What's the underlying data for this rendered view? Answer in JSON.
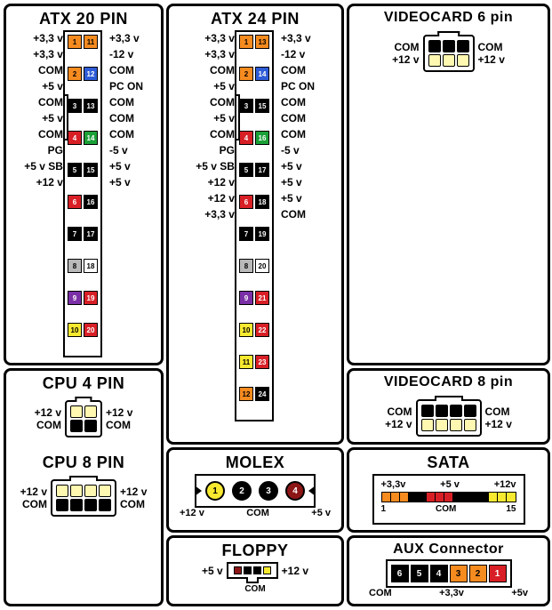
{
  "colors": {
    "orange": "#f68b1f",
    "blue": "#2e5cd6",
    "black": "#000000",
    "red": "#d81f26",
    "green": "#1aa037",
    "white": "#ffffff",
    "gray": "#b9b9b9",
    "purple": "#7b2fa6",
    "yellow": "#f7e92f",
    "darkred": "#8c1616",
    "ltyellow": "#fff8b0"
  },
  "atx20": {
    "title": "ATX 20 PIN",
    "left": [
      "+3,3 v",
      "+3,3 v",
      "COM",
      "+5 v",
      "COM",
      "+5 v",
      "COM",
      "PG",
      "+5 v SB",
      "+12 v"
    ],
    "right": [
      "+3,3 v",
      "-12 v",
      "COM",
      "PC ON",
      "COM",
      "COM",
      "COM",
      "-5 v",
      "+5 v",
      "+5 v"
    ],
    "pinsL": [
      {
        "n": "1",
        "c": "orange"
      },
      {
        "n": "2",
        "c": "orange"
      },
      {
        "n": "3",
        "c": "black"
      },
      {
        "n": "4",
        "c": "red"
      },
      {
        "n": "5",
        "c": "black"
      },
      {
        "n": "6",
        "c": "red"
      },
      {
        "n": "7",
        "c": "black"
      },
      {
        "n": "8",
        "c": "gray"
      },
      {
        "n": "9",
        "c": "purple"
      },
      {
        "n": "10",
        "c": "yellow"
      }
    ],
    "pinsR": [
      {
        "n": "11",
        "c": "orange"
      },
      {
        "n": "12",
        "c": "blue"
      },
      {
        "n": "13",
        "c": "black"
      },
      {
        "n": "14",
        "c": "green"
      },
      {
        "n": "15",
        "c": "black"
      },
      {
        "n": "16",
        "c": "black"
      },
      {
        "n": "17",
        "c": "black"
      },
      {
        "n": "18",
        "c": "white"
      },
      {
        "n": "19",
        "c": "red"
      },
      {
        "n": "20",
        "c": "red"
      }
    ]
  },
  "atx24": {
    "title": "ATX 24 PIN",
    "left": [
      "+3,3 v",
      "+3,3 v",
      "COM",
      "+5 v",
      "COM",
      "+5 v",
      "COM",
      "PG",
      "+5 v SB",
      "+12 v",
      "+12 v",
      "+3,3 v"
    ],
    "right": [
      "+3,3 v",
      "-12 v",
      "COM",
      "PC ON",
      "COM",
      "COM",
      "COM",
      "-5 v",
      "+5 v",
      "+5 v",
      "+5 v",
      "COM"
    ],
    "pinsL": [
      {
        "n": "1",
        "c": "orange"
      },
      {
        "n": "2",
        "c": "orange"
      },
      {
        "n": "3",
        "c": "black"
      },
      {
        "n": "4",
        "c": "red"
      },
      {
        "n": "5",
        "c": "black"
      },
      {
        "n": "6",
        "c": "red"
      },
      {
        "n": "7",
        "c": "black"
      },
      {
        "n": "8",
        "c": "gray"
      },
      {
        "n": "9",
        "c": "purple"
      },
      {
        "n": "10",
        "c": "yellow"
      },
      {
        "n": "11",
        "c": "yellow"
      },
      {
        "n": "12",
        "c": "orange"
      }
    ],
    "pinsR": [
      {
        "n": "13",
        "c": "orange"
      },
      {
        "n": "14",
        "c": "blue"
      },
      {
        "n": "15",
        "c": "black"
      },
      {
        "n": "16",
        "c": "green"
      },
      {
        "n": "17",
        "c": "black"
      },
      {
        "n": "18",
        "c": "black"
      },
      {
        "n": "19",
        "c": "black"
      },
      {
        "n": "20",
        "c": "white"
      },
      {
        "n": "21",
        "c": "red"
      },
      {
        "n": "22",
        "c": "red"
      },
      {
        "n": "23",
        "c": "red"
      },
      {
        "n": "24",
        "c": "black"
      }
    ]
  },
  "cpu4": {
    "title": "CPU 4 PIN",
    "topL": "+12 v",
    "topR": "+12 v",
    "botL": "COM",
    "botR": "COM",
    "top": [
      {
        "c": "ltyellow"
      },
      {
        "c": "ltyellow"
      }
    ],
    "bot": [
      {
        "c": "black"
      },
      {
        "c": "black"
      }
    ]
  },
  "cpu8": {
    "title": "CPU 8 PIN",
    "topL": "+12 v",
    "topR": "+12 v",
    "botL": "COM",
    "botR": "COM",
    "top": [
      {
        "c": "ltyellow"
      },
      {
        "c": "ltyellow"
      },
      {
        "c": "ltyellow"
      },
      {
        "c": "ltyellow"
      }
    ],
    "bot": [
      {
        "c": "black"
      },
      {
        "c": "black"
      },
      {
        "c": "black"
      },
      {
        "c": "black"
      }
    ]
  },
  "vga6": {
    "title": "VIDEOCARD 6 pin",
    "topL": "COM",
    "topR": "COM",
    "botL": "+12 v",
    "botR": "+12 v",
    "top": [
      {
        "c": "black"
      },
      {
        "c": "black"
      },
      {
        "c": "black"
      }
    ],
    "bot": [
      {
        "c": "ltyellow"
      },
      {
        "c": "ltyellow"
      },
      {
        "c": "ltyellow"
      }
    ]
  },
  "vga8": {
    "title": "VIDEOCARD 8 pin",
    "topL": "COM",
    "topR": "COM",
    "botL": "+12 v",
    "botR": "+12 v",
    "top": [
      {
        "c": "black"
      },
      {
        "c": "black"
      },
      {
        "c": "black"
      },
      {
        "c": "black"
      }
    ],
    "bot": [
      {
        "c": "ltyellow"
      },
      {
        "c": "ltyellow"
      },
      {
        "c": "ltyellow"
      },
      {
        "c": "ltyellow"
      }
    ]
  },
  "molex": {
    "title": "MOLEX",
    "pins": [
      {
        "n": "1",
        "c": "yellow"
      },
      {
        "n": "2",
        "c": "black"
      },
      {
        "n": "3",
        "c": "black"
      },
      {
        "n": "4",
        "c": "darkred"
      }
    ],
    "lblL": "+12 v",
    "lblR": "+5 v",
    "lblMid": "COM"
  },
  "floppy": {
    "title": "FLOPPY",
    "pins": [
      {
        "c": "darkred"
      },
      {
        "c": "black"
      },
      {
        "c": "black"
      },
      {
        "c": "yellow"
      }
    ],
    "lblL": "+5 v",
    "lblR": "+12 v",
    "lblMid": "COM"
  },
  "sata": {
    "title": "SATA",
    "topLbls": [
      "+3,3v",
      "+5 v",
      "+12v"
    ],
    "segs": [
      "orange",
      "orange",
      "orange",
      "black",
      "black",
      "red",
      "red",
      "red",
      "black",
      "black",
      "black",
      "black",
      "yellow",
      "yellow",
      "yellow"
    ],
    "botL": "1",
    "botMid": "COM",
    "botR": "15"
  },
  "aux": {
    "title": "AUX Connector",
    "pins": [
      {
        "n": "6",
        "c": "black"
      },
      {
        "n": "5",
        "c": "black"
      },
      {
        "n": "4",
        "c": "black"
      },
      {
        "n": "3",
        "c": "orange"
      },
      {
        "n": "2",
        "c": "orange"
      },
      {
        "n": "1",
        "c": "red"
      }
    ],
    "lbls": [
      "+5v",
      "+3,3v",
      "COM"
    ]
  }
}
